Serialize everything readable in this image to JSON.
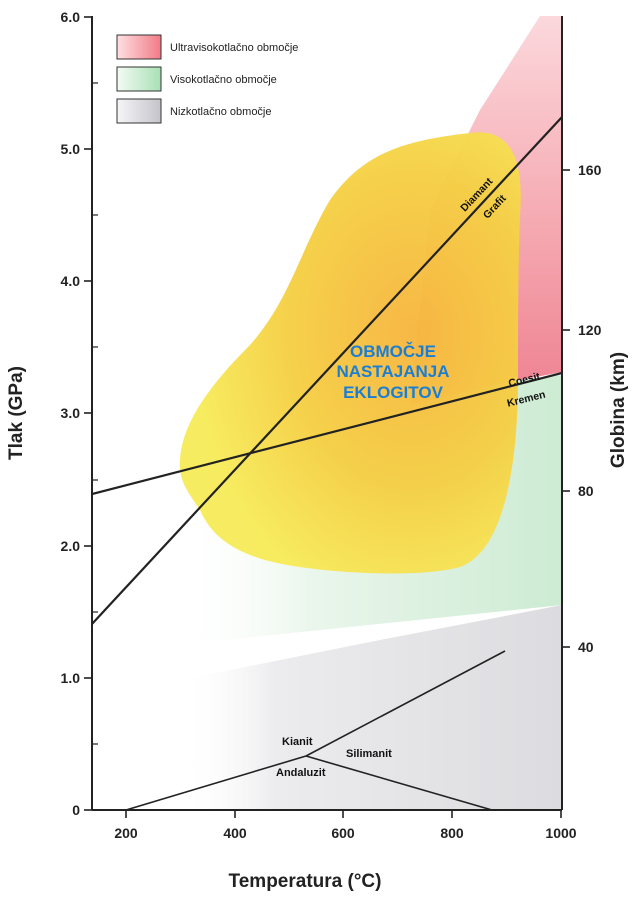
{
  "axes": {
    "x_label": "Temperatura (°C)",
    "y_left_label": "Tlak (GPa)",
    "y_right_label": "Globina (km)",
    "x_ticks": [
      "200",
      "400",
      "600",
      "800",
      "1000"
    ],
    "y_left_ticks": [
      "0",
      "1.0",
      "2.0",
      "3.0",
      "4.0",
      "5.0",
      "6.0"
    ],
    "y_right_ticks": [
      "40",
      "80",
      "120",
      "160"
    ]
  },
  "legend": [
    {
      "label": "Ultravisokotlačno območje",
      "color": "#f07070"
    },
    {
      "label": "Visokotlačno območje",
      "color": "#a8e0b0"
    },
    {
      "label": "Nizkotlačno območje",
      "color": "#c8c8cc"
    }
  ],
  "region_label": [
    "OBMOČJE",
    "NASTAJANJA",
    "EKLOGITOV"
  ],
  "line_labels": {
    "diamant": "Diamant",
    "grafit": "Grafit",
    "coesit": "Coesit",
    "kremen": "Kremen",
    "kianit": "Kianit",
    "silimanit": "Silimanit",
    "andaluzit": "Andaluzit"
  },
  "colors": {
    "region_text": "#1a7fd4",
    "eclogite_field": "#f6e64a",
    "line": "#222222"
  }
}
